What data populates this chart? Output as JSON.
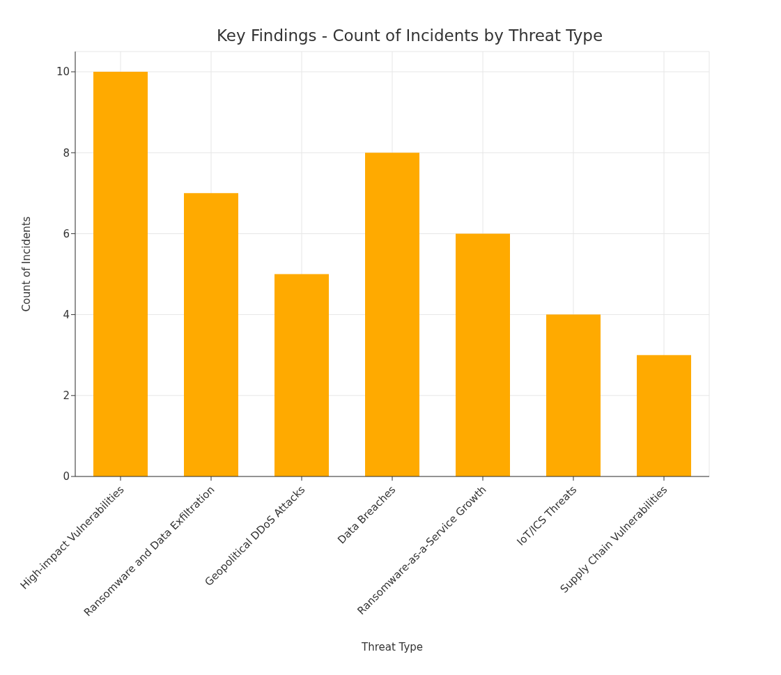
{
  "chart_data": {
    "type": "bar",
    "title": "Key Findings - Count of Incidents by Threat Type",
    "xlabel": "Threat Type",
    "ylabel": "Count of Incidents",
    "categories": [
      "High-impact Vulnerabilities",
      "Ransomware and Data Exfiltration",
      "Geopolitical DDoS Attacks",
      "Data Breaches",
      "Ransomware-as-a-Service Growth",
      "IoT/ICS Threats",
      "Supply Chain Vulnerabilities"
    ],
    "values": [
      10,
      7,
      5,
      8,
      6,
      4,
      3
    ],
    "color": "#ffaa00",
    "ylim": [
      0,
      10.5
    ],
    "yticks": [
      0,
      2,
      4,
      6,
      8,
      10
    ],
    "grid": true
  }
}
